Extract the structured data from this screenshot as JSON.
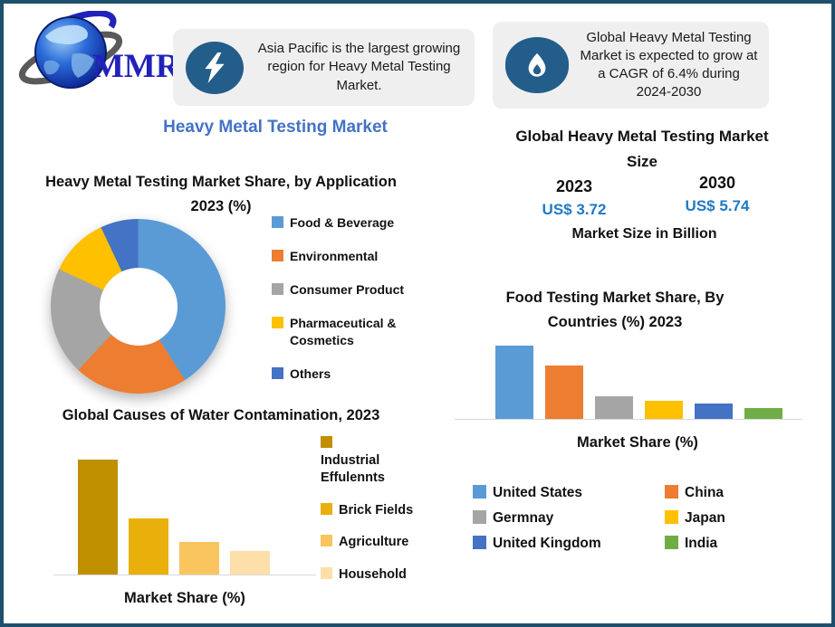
{
  "logo": {
    "text": "MMR"
  },
  "callouts": [
    {
      "icon": "lightning-icon",
      "text": "Asia Pacific is the largest growing region for Heavy Metal Testing Market."
    },
    {
      "icon": "flame-icon",
      "text": "Global Heavy Metal Testing Market is expected to grow at a CAGR of 6.4% during 2024-2030"
    }
  ],
  "left_column": {
    "main_title": "Heavy Metal Testing Market",
    "bottom_xlabel": "Market Share (%)"
  },
  "right_column": {
    "market_size_title": "Global Heavy Metal Testing Market Size",
    "year_2023": "2023",
    "year_2030": "2030",
    "value_2023": "US$ 3.72",
    "value_2030": "US$ 5.74",
    "unit_label": "Market Size in Billion",
    "bottom_xlabel": "Market Share (%)"
  },
  "colors": {
    "frame_border": "#1E4F6B",
    "callout_bg": "#EFEFEF",
    "callout_icon_blue": "#235D8A",
    "title_blue": "#4472C4",
    "value_blue": "#1F7AC4",
    "axis_gray": "#D9D9D9"
  },
  "chart_data": [
    {
      "type": "pie",
      "subtype": "donut",
      "title": "Heavy Metal Testing Market Share, by Application 2023 (%)",
      "categories": [
        "Food & Beverage",
        "Environmental",
        "Consumer Product",
        "Pharmaceutical & Cosmetics",
        "Others"
      ],
      "values": [
        41,
        21,
        20,
        11,
        7
      ],
      "colors": [
        "#5B9BD5",
        "#ED7D31",
        "#A5A5A5",
        "#FFC000",
        "#4472C4"
      ],
      "legend_position": "right"
    },
    {
      "type": "bar",
      "title": "Global Causes of Water Contamination, 2023",
      "categories": [
        "Industrial Effulennts",
        "Brick Fields",
        "Agriculture",
        "Household"
      ],
      "values": [
        49,
        24,
        14,
        10
      ],
      "colors": [
        "#BF8F00",
        "#E9AF0B",
        "#FAC45F",
        "#FCDFA9"
      ],
      "xlabel": "Market Share (%)",
      "ylim": [
        0,
        50
      ],
      "grid": false,
      "legend_position": "right"
    },
    {
      "type": "bar",
      "title": "Food Testing Market Share, By Countries (%) 2023",
      "categories": [
        "United States",
        "China",
        "Germnay",
        "Japan",
        "United Kingdom",
        "India"
      ],
      "values": [
        33,
        24,
        10,
        8,
        7,
        5
      ],
      "colors": [
        "#5B9BD5",
        "#ED7D31",
        "#A5A5A5",
        "#FFC000",
        "#4472C4",
        "#70AD47"
      ],
      "xlabel": "Market Share (%)",
      "ylim": [
        0,
        35
      ],
      "grid": false,
      "legend_position": "bottom"
    }
  ]
}
